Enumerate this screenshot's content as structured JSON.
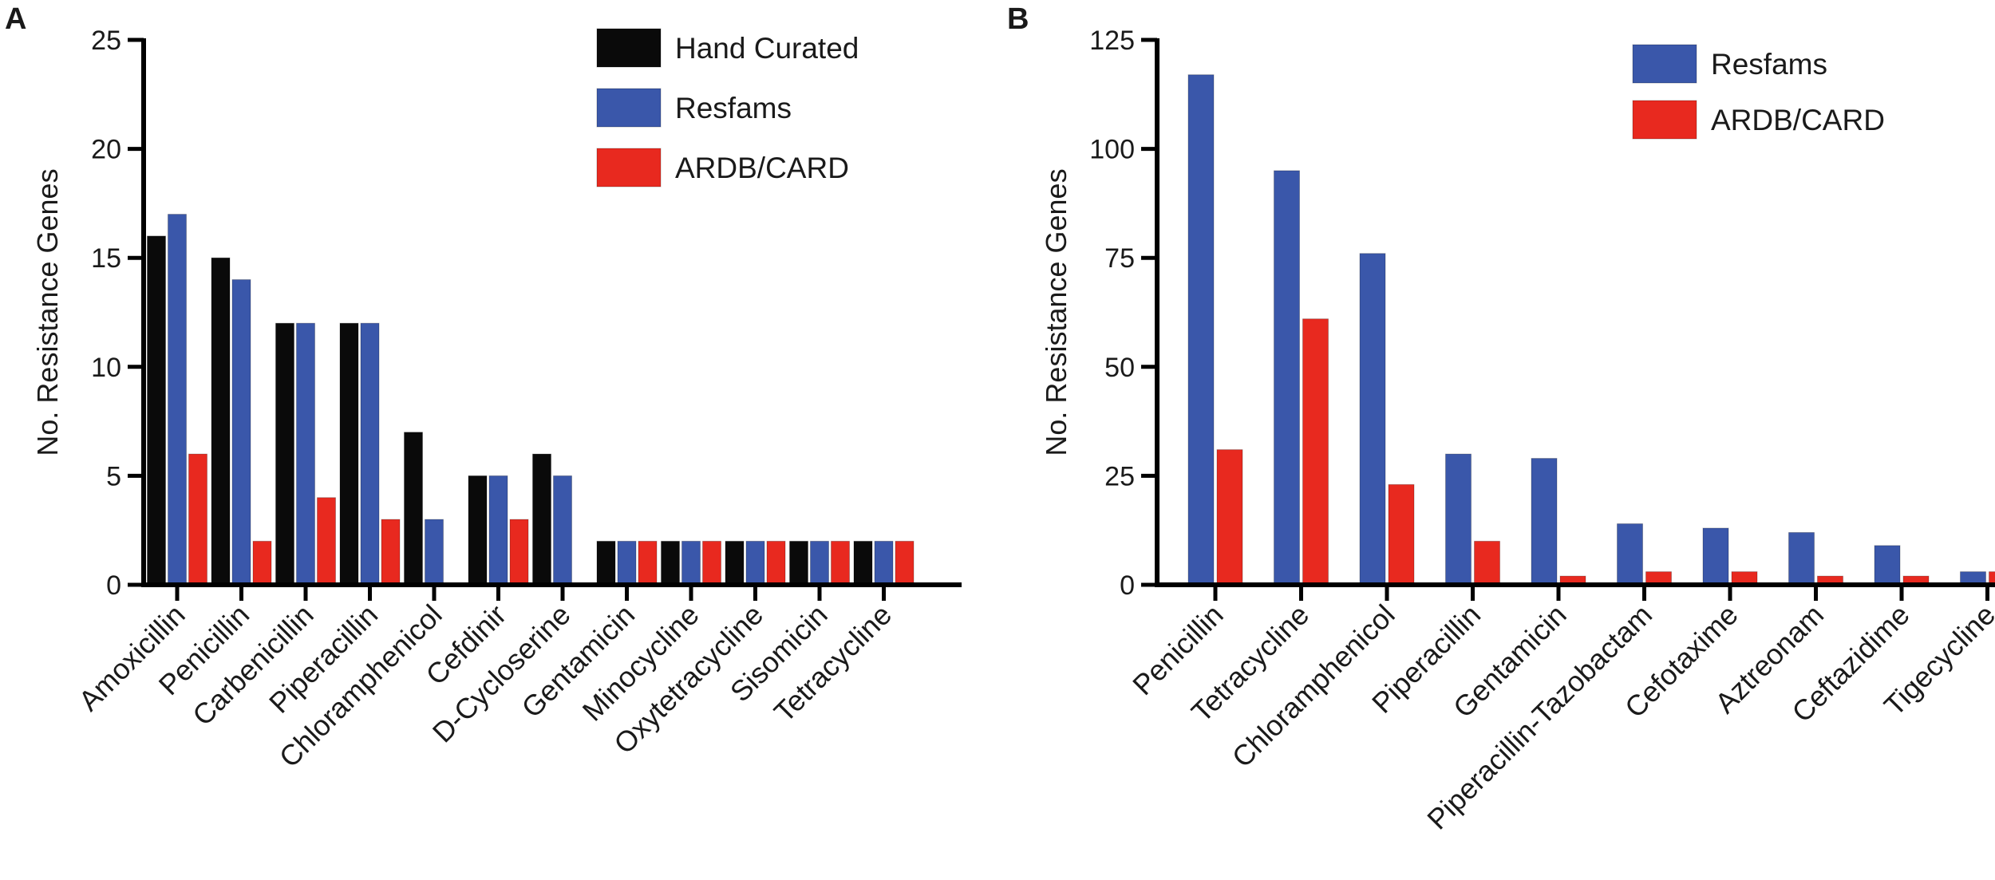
{
  "chart_data": [
    {
      "panel": "A",
      "type": "bar",
      "title": "",
      "xlabel": "",
      "ylabel": "No. Resistance Genes",
      "ylim": [
        0,
        25
      ],
      "yticks": [
        0,
        5,
        10,
        15,
        20,
        25
      ],
      "legend_position": "top-right",
      "categories": [
        "Amoxicillin",
        "Penicillin",
        "Carbenicillin",
        "Piperacillin",
        "Chloramphenicol",
        "Cefdinir",
        "D-Cycloserine",
        "Gentamicin",
        "Minocycline",
        "Oxytetracycline",
        "Sisomicin",
        "Tetracycline"
      ],
      "series": [
        {
          "name": "Hand Curated",
          "color": "#0a0a0a",
          "values": [
            16,
            15,
            12,
            12,
            7,
            5,
            6,
            2,
            2,
            2,
            2,
            2
          ]
        },
        {
          "name": "Resfams",
          "color": "#3a57aa",
          "values": [
            17,
            14,
            12,
            12,
            3,
            5,
            5,
            2,
            2,
            2,
            2,
            2
          ]
        },
        {
          "name": "ARDB/CARD",
          "color": "#e8291f",
          "values": [
            6,
            2,
            4,
            3,
            0,
            3,
            0,
            2,
            2,
            2,
            2,
            2
          ]
        }
      ]
    },
    {
      "panel": "B",
      "type": "bar",
      "title": "",
      "xlabel": "",
      "ylabel": "No. Resistance Genes",
      "ylim": [
        0,
        125
      ],
      "yticks": [
        0,
        25,
        50,
        75,
        100,
        125
      ],
      "legend_position": "top-right",
      "categories": [
        "Penicillin",
        "Tetracycline",
        "Chloramphenicol",
        "Piperacillin",
        "Gentamicin",
        "Piperacillin-Tazobactam",
        "Cefotaxime",
        "Aztreonam",
        "Ceftazidime",
        "Tigecycline"
      ],
      "series": [
        {
          "name": "Resfams",
          "color": "#3a57aa",
          "values": [
            117,
            95,
            76,
            30,
            29,
            14,
            13,
            12,
            9,
            3
          ]
        },
        {
          "name": "ARDB/CARD",
          "color": "#e8291f",
          "values": [
            31,
            61,
            23,
            10,
            2,
            3,
            3,
            2,
            2,
            3
          ]
        }
      ]
    }
  ]
}
